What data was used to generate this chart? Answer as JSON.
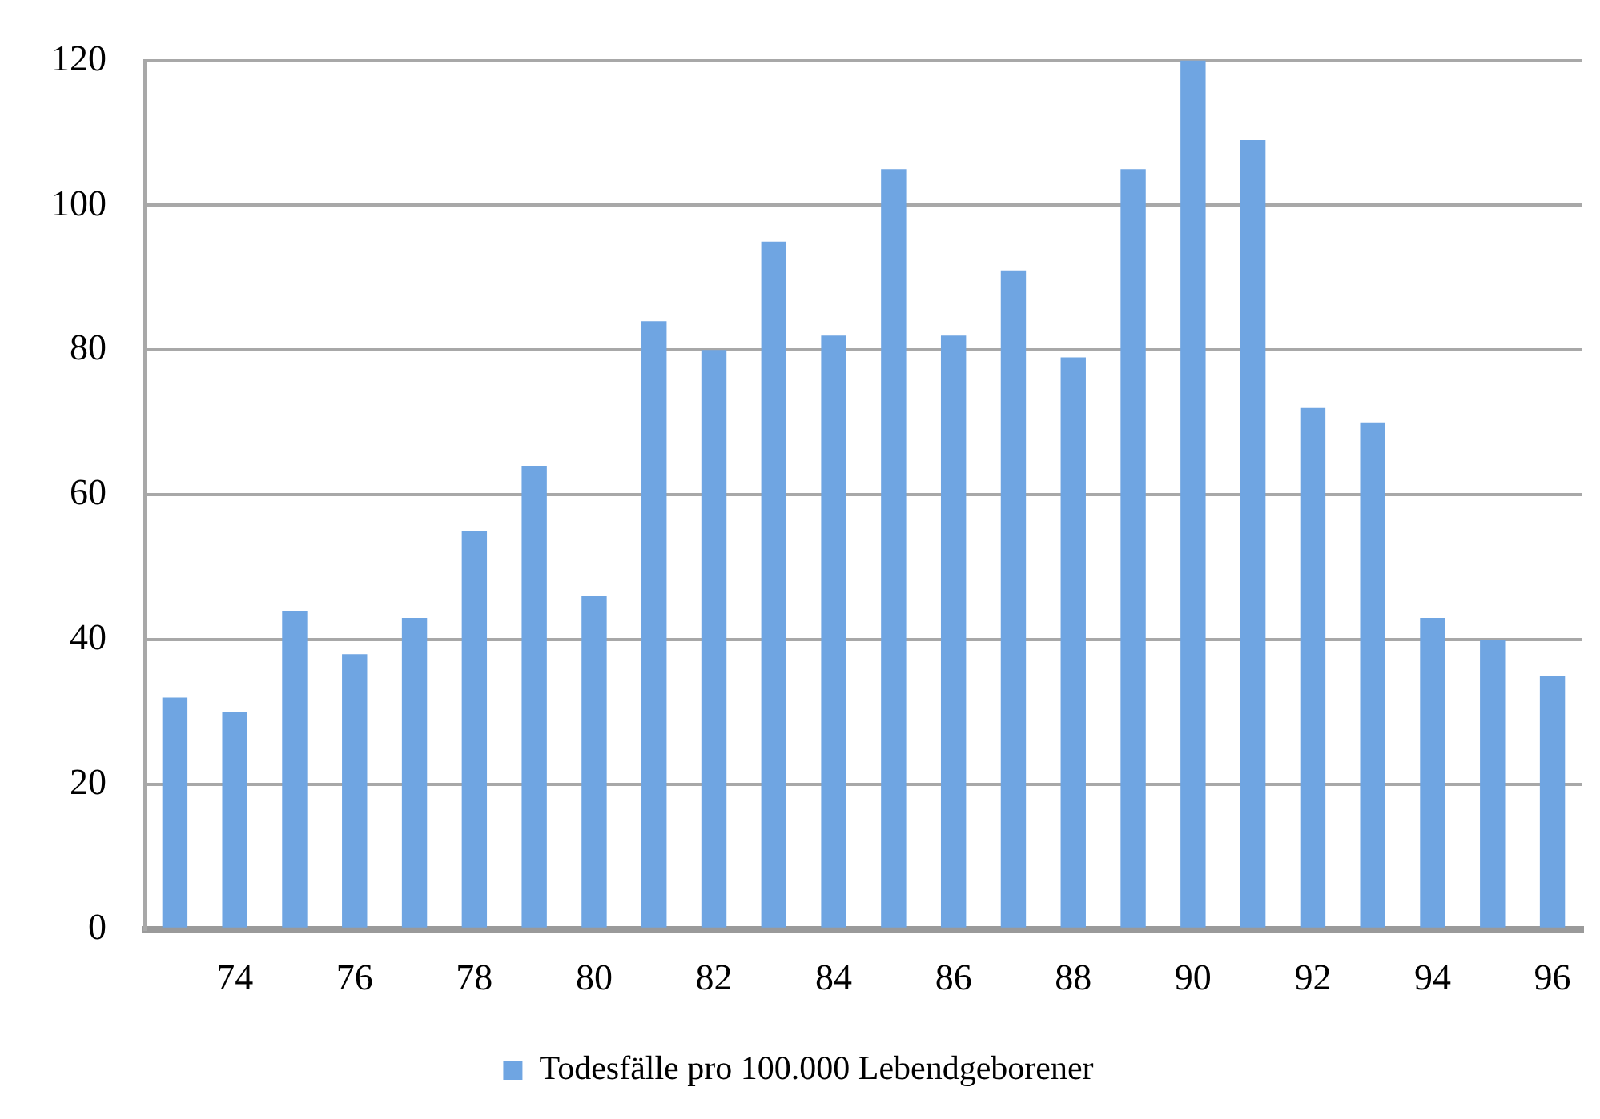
{
  "chart_data": {
    "type": "bar",
    "categories": [
      null,
      "74",
      null,
      "76",
      null,
      "78",
      null,
      "80",
      null,
      "82",
      null,
      "84",
      null,
      "86",
      null,
      "88",
      null,
      "90",
      null,
      "92",
      null,
      "94",
      null,
      "96"
    ],
    "series": [
      {
        "name": "Todesfälle pro 100.000 Lebendgeborener",
        "color": "#6fa5e2",
        "values": [
          32,
          30,
          44,
          38,
          43,
          55,
          64,
          46,
          84,
          80,
          95,
          82,
          105,
          82,
          91,
          79,
          105,
          120,
          109,
          72,
          70,
          43,
          40,
          35
        ]
      }
    ],
    "ylim": [
      0,
      120
    ],
    "yticks": [
      0,
      20,
      40,
      60,
      80,
      100,
      120
    ],
    "grid": "y",
    "legend": "bottom"
  }
}
